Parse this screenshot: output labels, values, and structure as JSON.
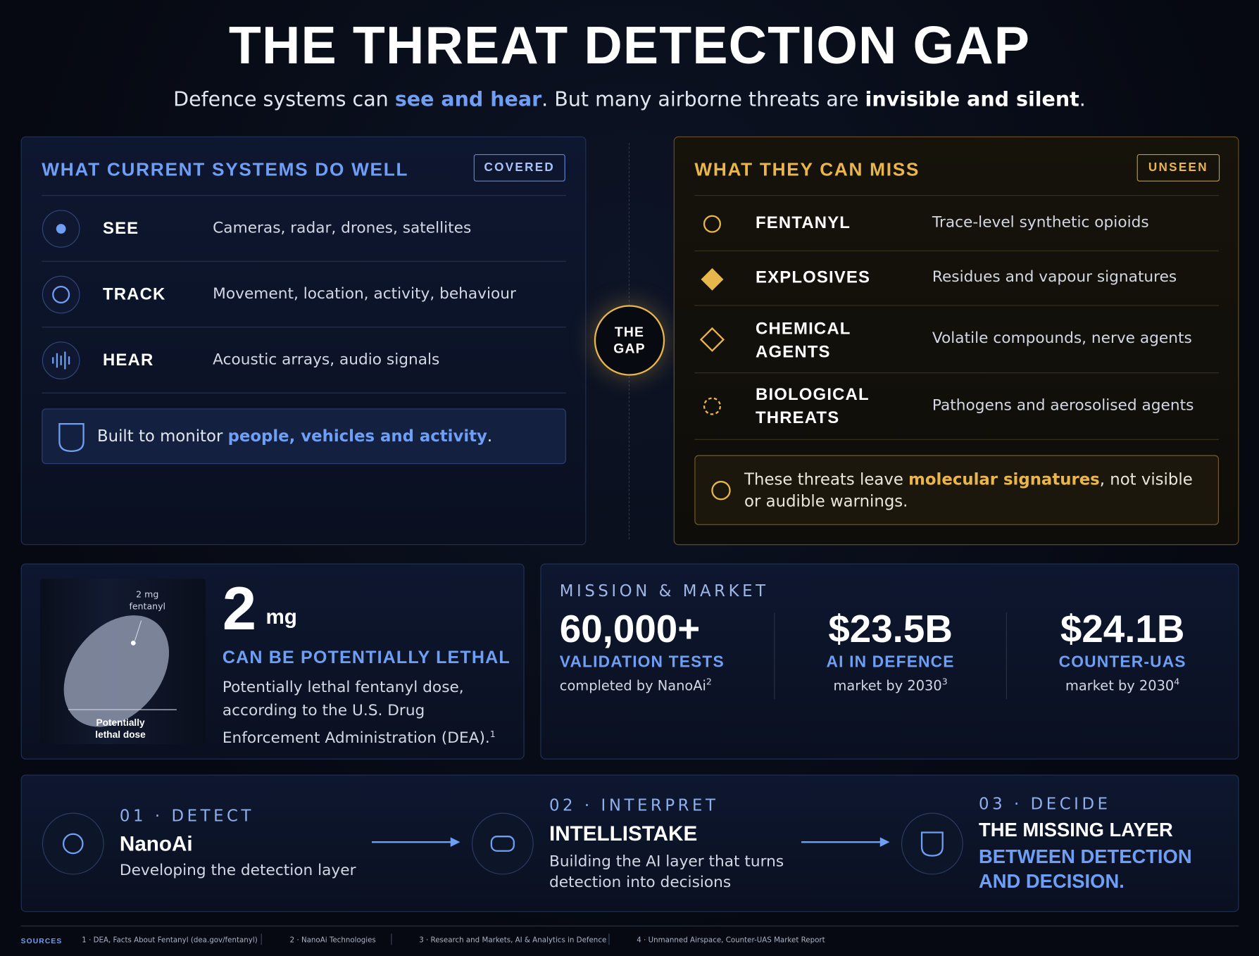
{
  "header": {
    "title": "THE THREAT DETECTION GAP",
    "subtitle": [
      "Defence systems can ",
      "see and hear",
      ". But many airborne threats are ",
      "invisible and silent",
      "."
    ]
  },
  "covered": {
    "title": "WHAT CURRENT SYSTEMS DO WELL",
    "badge": "COVERED",
    "rows": [
      {
        "label": "SEE",
        "desc": "Cameras, radar, drones, satellites"
      },
      {
        "label": "TRACK",
        "desc": "Movement, location, activity, behaviour"
      },
      {
        "label": "HEAR",
        "desc": "Acoustic arrays, audio signals"
      }
    ],
    "note": [
      "Built to monitor ",
      "people, vehicles and activity",
      "."
    ]
  },
  "gap": {
    "label": [
      "THE",
      "GAP"
    ]
  },
  "unseen": {
    "title": "WHAT THEY CAN MISS",
    "badge": "UNSEEN",
    "rows": [
      {
        "label": "FENTANYL",
        "desc": "Trace-level synthetic opioids"
      },
      {
        "label": "EXPLOSIVES",
        "desc": "Residues and vapour signatures"
      },
      {
        "label": "CHEMICAL AGENTS",
        "desc": "Volatile compounds, nerve agents"
      },
      {
        "label": "BIOLOGICAL THREATS",
        "desc": "Pathogens and aerosolised agents"
      }
    ],
    "note": [
      "These threats leave ",
      "molecular signatures",
      ", not visible or audible warnings."
    ]
  },
  "dose": {
    "image_label": "2 mg fentanyl",
    "image_caption": "Potentially lethal dose",
    "amount": "2",
    "unit": "mg",
    "headline": "CAN BE POTENTIALLY LETHAL",
    "text": "Potentially lethal fentanyl dose, according to the U.S. Drug Enforcement Administration (DEA).",
    "ref": "1"
  },
  "market": {
    "title": "MISSION & MARKET",
    "stats": [
      {
        "value": "60,000+",
        "label": "VALIDATION TESTS",
        "note": "completed by NanoAi",
        "ref": "2"
      },
      {
        "value": "$23.5B",
        "label": "AI IN DEFENCE",
        "note": "market by 2030",
        "ref": "3"
      },
      {
        "value": "$24.1B",
        "label": "COUNTER-UAS",
        "note": "market by 2030",
        "ref": "4"
      }
    ]
  },
  "steps": [
    {
      "step": "01 · DETECT",
      "name": "NanoAi",
      "desc": "Developing the detection layer"
    },
    {
      "step": "02 · INTERPRET",
      "name": "INTELLISTAKE",
      "desc": "Building the AI layer that turns detection into decisions"
    },
    {
      "step": "03 · DECIDE",
      "name": "THE MISSING LAYER",
      "desc": "BETWEEN DETECTION AND DECISION."
    }
  ],
  "sources": {
    "label": "SOURCES",
    "items": [
      "1 · DEA, Facts About Fentanyl (dea.gov/fentanyl)",
      "2 · NanoAi Technologies",
      "3 · Research and Markets, AI & Analytics in Defence",
      "4 · Unmanned Airspace, Counter-UAS Market Report"
    ]
  }
}
